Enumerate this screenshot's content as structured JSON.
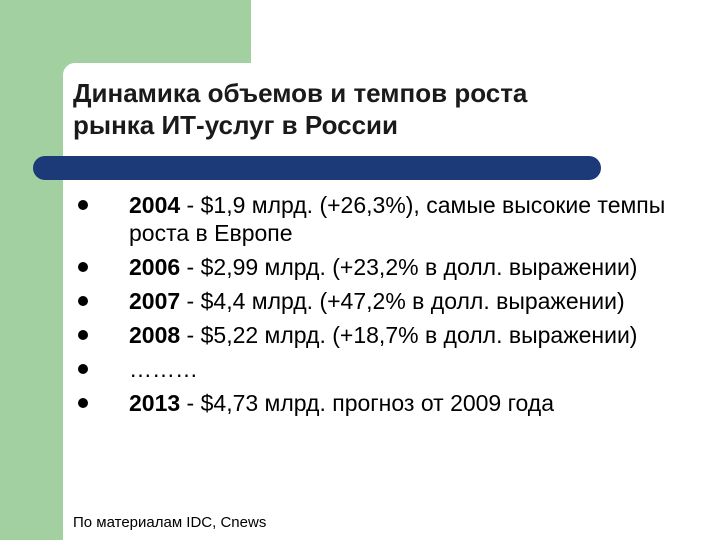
{
  "title": {
    "line1": "Динамика объемов и темпов роста",
    "line2": "рынка ИТ-услуг в России"
  },
  "bullets": [
    {
      "year": "2004",
      "text": " - $1,9 млрд. (+26,3%), самые высокие темпы роста в Европе"
    },
    {
      "year": "2006",
      "text": " - $2,99 млрд. (+23,2% в долл. выражении)"
    },
    {
      "year": "2007",
      "text": " - $4,4 млрд. (+47,2% в долл. выражении)"
    },
    {
      "year": "2008",
      "text": " - $5,22 млрд. (+18,7% в долл. выражении)"
    },
    {
      "year": "",
      "text": "………"
    },
    {
      "year": "2013",
      "text": " - $4,73 млрд. прогноз от 2009 года"
    }
  ],
  "source": "По материалам IDC, Cnews",
  "colors": {
    "accent_green": "#a3d0a0",
    "title_bar": "#1d3a78"
  }
}
